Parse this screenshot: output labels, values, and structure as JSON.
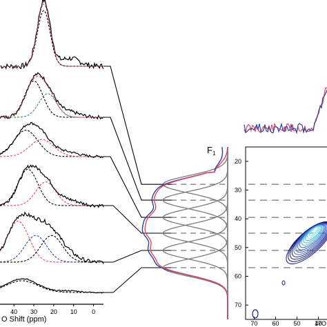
{
  "chart_data": [
    {
      "type": "line",
      "panel": "1D slices (left)",
      "xlabel": "O Shift (ppm)",
      "x_ticks": [
        "40",
        "30",
        "20",
        "10",
        "0"
      ],
      "xlim": [
        47,
        -5
      ],
      "slices": [
        {
          "peak_centers_ppm": [
            25
          ]
        },
        {
          "peak_centers_ppm": [
            30,
            23
          ]
        },
        {
          "peak_centers_ppm": [
            34,
            26
          ]
        },
        {
          "peak_centers_ppm": [
            33,
            24
          ]
        },
        {
          "peak_centers_ppm": [
            38,
            29,
            21
          ]
        },
        {
          "peak_centers_ppm": [
            36
          ]
        }
      ]
    },
    {
      "type": "line",
      "panel": "F1 projection (middle)",
      "label": "F",
      "label_sub": "1",
      "ylim": [
        15,
        75
      ],
      "gaussian_centers_ppm": [
        28,
        33.5,
        39.5,
        45,
        51,
        57
      ],
      "colors": {
        "black": "#000000",
        "red": "#e2475f",
        "blue": "#2a3f9f",
        "gray": "#808080"
      }
    },
    {
      "type": "line",
      "panel": "F2 projection (top right)",
      "colors": {
        "blue": "#2a3f9f",
        "red": "#e2475f"
      }
    },
    {
      "type": "heatmap",
      "panel": "2D contour (right)",
      "y_ticks": [
        "20",
        "30",
        "40",
        "50",
        "60",
        "70"
      ],
      "ylim": [
        15,
        75
      ],
      "x_ticks": [
        "70",
        "60",
        "50",
        "40"
      ],
      "xlim": [
        74,
        36
      ],
      "xlabel_partial": "17O",
      "dashed_rows_ppm": [
        28,
        33.5,
        39.5,
        45,
        51,
        57
      ],
      "colormap": [
        "#1b1f7a",
        "#3a63c9",
        "#48b6d8",
        "#88dce8"
      ]
    }
  ]
}
